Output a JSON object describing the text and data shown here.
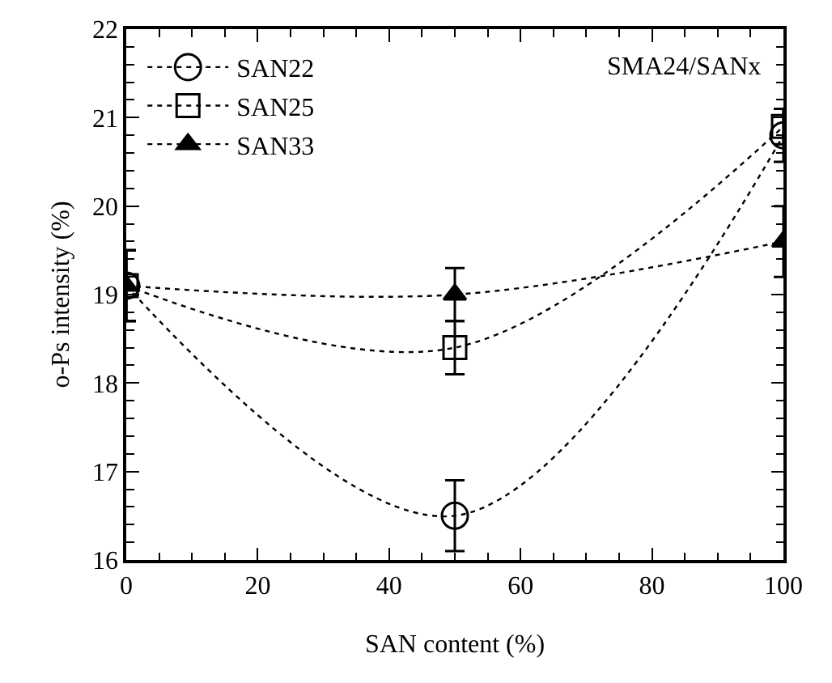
{
  "chart_data": {
    "type": "line",
    "xlabel": "SAN content (%)",
    "ylabel": "o-Ps intensity (%)",
    "annotations": [
      "SMA24/SANx"
    ],
    "x": [
      0,
      50,
      100
    ],
    "series": [
      {
        "name": "SAN22",
        "color": "#000000",
        "marker": "circle",
        "values": [
          19.1,
          16.5,
          20.8
        ],
        "errors": [
          0.4,
          0.4,
          0.3
        ]
      },
      {
        "name": "SAN25",
        "color": "#000000",
        "marker": "square",
        "values": [
          19.1,
          18.4,
          20.9
        ],
        "errors": [
          0.4,
          0.3,
          0.2
        ]
      },
      {
        "name": "SAN33",
        "color": "#000000",
        "marker": "triangle",
        "values": [
          19.1,
          19.0,
          19.6
        ],
        "errors": [
          0.4,
          0.3,
          0.4
        ]
      }
    ],
    "xlim": [
      0,
      100
    ],
    "xticks": [
      0,
      20,
      40,
      60,
      80,
      100
    ],
    "ylim": [
      16,
      22
    ],
    "yticks": [
      16,
      17,
      18,
      19,
      20,
      21,
      22
    ],
    "grid": false,
    "legend": "top left",
    "line_style": "dotted"
  }
}
